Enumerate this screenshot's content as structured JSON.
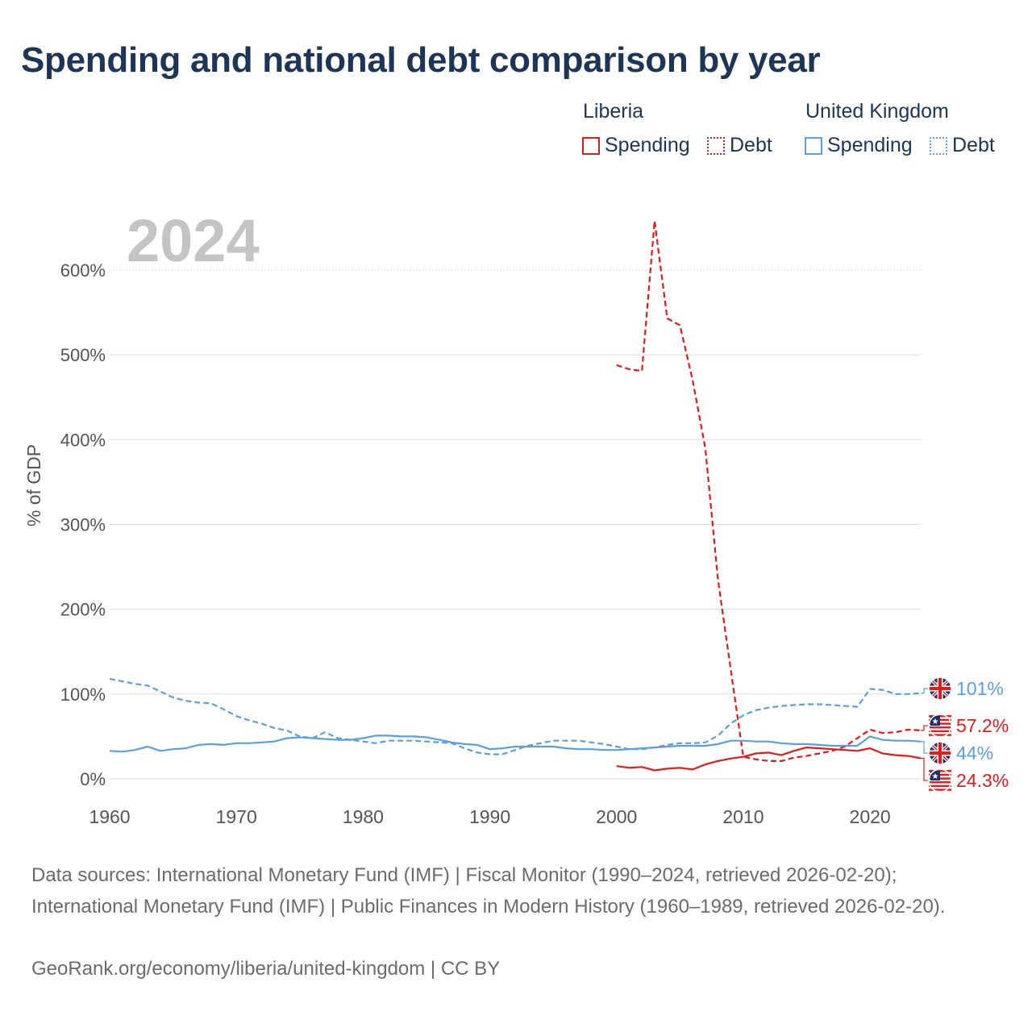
{
  "title": "Spending and national debt comparison by year",
  "legend": {
    "liberia": {
      "name": "Liberia",
      "spending": "Spending",
      "debt": "Debt"
    },
    "uk": {
      "name": "United Kingdom",
      "spending": "Spending",
      "debt": "Debt"
    }
  },
  "colors": {
    "liberia": "#e31a1c",
    "uk": "#5aa0e0",
    "grid": "#dddddd",
    "axis_text": "#555555",
    "year": "#c4c4c4"
  },
  "chart_data": {
    "type": "line",
    "current_year": "2024",
    "ylabel": "% of GDP",
    "xlabel": "",
    "xlim": [
      1960,
      2024
    ],
    "ylim": [
      0,
      600
    ],
    "y_ticks": [
      0,
      100,
      200,
      300,
      400,
      500,
      600
    ],
    "y_tick_labels": [
      "0%",
      "100%",
      "200%",
      "300%",
      "400%",
      "500%",
      "600%"
    ],
    "x_ticks": [
      1960,
      1970,
      1980,
      1990,
      2000,
      2010,
      2020
    ],
    "x_tick_labels": [
      "1960",
      "1970",
      "1980",
      "1990",
      "2000",
      "2010",
      "2020"
    ],
    "series": [
      {
        "name": "United Kingdom Debt",
        "country": "uk",
        "dash": true,
        "end_label": "101%",
        "points": [
          [
            1960,
            118
          ],
          [
            1961,
            115
          ],
          [
            1962,
            112
          ],
          [
            1963,
            110
          ],
          [
            1964,
            103
          ],
          [
            1965,
            96
          ],
          [
            1966,
            92
          ],
          [
            1967,
            90
          ],
          [
            1968,
            89
          ],
          [
            1969,
            82
          ],
          [
            1970,
            74
          ],
          [
            1971,
            69
          ],
          [
            1972,
            65
          ],
          [
            1973,
            60
          ],
          [
            1974,
            57
          ],
          [
            1975,
            50
          ],
          [
            1976,
            48
          ],
          [
            1977,
            55
          ],
          [
            1978,
            48
          ],
          [
            1979,
            46
          ],
          [
            1980,
            44
          ],
          [
            1981,
            42
          ],
          [
            1982,
            45
          ],
          [
            1983,
            45
          ],
          [
            1984,
            45
          ],
          [
            1985,
            44
          ],
          [
            1986,
            43
          ],
          [
            1987,
            42
          ],
          [
            1988,
            36
          ],
          [
            1989,
            31
          ],
          [
            1990,
            29
          ],
          [
            1991,
            29
          ],
          [
            1992,
            34
          ],
          [
            1993,
            39
          ],
          [
            1994,
            42
          ],
          [
            1995,
            45
          ],
          [
            1996,
            45
          ],
          [
            1997,
            45
          ],
          [
            1998,
            43
          ],
          [
            1999,
            41
          ],
          [
            2000,
            38
          ],
          [
            2001,
            35
          ],
          [
            2002,
            35
          ],
          [
            2003,
            37
          ],
          [
            2004,
            40
          ],
          [
            2005,
            42
          ],
          [
            2006,
            42
          ],
          [
            2007,
            43
          ],
          [
            2008,
            51
          ],
          [
            2009,
            65
          ],
          [
            2010,
            75
          ],
          [
            2011,
            81
          ],
          [
            2012,
            84
          ],
          [
            2013,
            86
          ],
          [
            2014,
            87
          ],
          [
            2015,
            88
          ],
          [
            2016,
            88
          ],
          [
            2017,
            87
          ],
          [
            2018,
            86
          ],
          [
            2019,
            85
          ],
          [
            2020,
            106
          ],
          [
            2021,
            105
          ],
          [
            2022,
            100
          ],
          [
            2023,
            100
          ],
          [
            2024,
            101
          ]
        ]
      },
      {
        "name": "Liberia Debt",
        "country": "liberia",
        "dash": true,
        "end_label": "57.2%",
        "points": [
          [
            2000,
            488
          ],
          [
            2001,
            483
          ],
          [
            2002,
            481
          ],
          [
            2003,
            658
          ],
          [
            2004,
            543
          ],
          [
            2005,
            535
          ],
          [
            2006,
            470
          ],
          [
            2007,
            390
          ],
          [
            2008,
            235
          ],
          [
            2009,
            130
          ],
          [
            2010,
            26
          ],
          [
            2011,
            23
          ],
          [
            2012,
            21
          ],
          [
            2013,
            21
          ],
          [
            2014,
            25
          ],
          [
            2015,
            27
          ],
          [
            2016,
            30
          ],
          [
            2017,
            33
          ],
          [
            2018,
            38
          ],
          [
            2019,
            48
          ],
          [
            2020,
            58
          ],
          [
            2021,
            54
          ],
          [
            2022,
            55
          ],
          [
            2023,
            58
          ],
          [
            2024,
            57.2
          ]
        ]
      },
      {
        "name": "United Kingdom Spending",
        "country": "uk",
        "dash": false,
        "end_label": "44%",
        "points": [
          [
            1960,
            33
          ],
          [
            1961,
            32
          ],
          [
            1962,
            34
          ],
          [
            1963,
            38
          ],
          [
            1964,
            33
          ],
          [
            1965,
            35
          ],
          [
            1966,
            36
          ],
          [
            1967,
            40
          ],
          [
            1968,
            41
          ],
          [
            1969,
            40
          ],
          [
            1970,
            42
          ],
          [
            1971,
            42
          ],
          [
            1972,
            43
          ],
          [
            1973,
            44
          ],
          [
            1974,
            48
          ],
          [
            1975,
            49
          ],
          [
            1976,
            48
          ],
          [
            1977,
            47
          ],
          [
            1978,
            46
          ],
          [
            1979,
            46
          ],
          [
            1980,
            48
          ],
          [
            1981,
            51
          ],
          [
            1982,
            51
          ],
          [
            1983,
            50
          ],
          [
            1984,
            50
          ],
          [
            1985,
            49
          ],
          [
            1986,
            46
          ],
          [
            1987,
            43
          ],
          [
            1988,
            41
          ],
          [
            1989,
            40
          ],
          [
            1990,
            35
          ],
          [
            1991,
            36
          ],
          [
            1992,
            38
          ],
          [
            1993,
            38
          ],
          [
            1994,
            38
          ],
          [
            1995,
            38
          ],
          [
            1996,
            36
          ],
          [
            1997,
            35
          ],
          [
            1998,
            35
          ],
          [
            1999,
            34
          ],
          [
            2000,
            34
          ],
          [
            2001,
            35
          ],
          [
            2002,
            36
          ],
          [
            2003,
            37
          ],
          [
            2004,
            38
          ],
          [
            2005,
            39
          ],
          [
            2006,
            39
          ],
          [
            2007,
            39
          ],
          [
            2008,
            41
          ],
          [
            2009,
            45
          ],
          [
            2010,
            45
          ],
          [
            2011,
            44
          ],
          [
            2012,
            44
          ],
          [
            2013,
            42
          ],
          [
            2014,
            41
          ],
          [
            2015,
            41
          ],
          [
            2016,
            40
          ],
          [
            2017,
            39
          ],
          [
            2018,
            39
          ],
          [
            2019,
            39
          ],
          [
            2020,
            50
          ],
          [
            2021,
            46
          ],
          [
            2022,
            45
          ],
          [
            2023,
            45
          ],
          [
            2024,
            44
          ]
        ]
      },
      {
        "name": "Liberia Spending",
        "country": "liberia",
        "dash": false,
        "end_label": "24.3%",
        "points": [
          [
            2000,
            15
          ],
          [
            2001,
            13
          ],
          [
            2002,
            14
          ],
          [
            2003,
            10
          ],
          [
            2004,
            12
          ],
          [
            2005,
            13
          ],
          [
            2006,
            11
          ],
          [
            2007,
            17
          ],
          [
            2008,
            21
          ],
          [
            2009,
            24
          ],
          [
            2010,
            26
          ],
          [
            2011,
            30
          ],
          [
            2012,
            31
          ],
          [
            2013,
            28
          ],
          [
            2014,
            33
          ],
          [
            2015,
            37
          ],
          [
            2016,
            36
          ],
          [
            2017,
            35
          ],
          [
            2018,
            34
          ],
          [
            2019,
            33
          ],
          [
            2020,
            36
          ],
          [
            2021,
            30
          ],
          [
            2022,
            28
          ],
          [
            2023,
            27
          ],
          [
            2024,
            24.3
          ]
        ]
      }
    ]
  },
  "footer": {
    "sources": "Data sources: International Monetary Fund (IMF) | Fiscal Monitor (1990–2024, retrieved 2026-02-20); International Monetary Fund (IMF) | Public Finances in Modern History (1960–1989, retrieved 2026-02-20).",
    "credit": "GeoRank.org/economy/liberia/united-kingdom | CC BY"
  }
}
